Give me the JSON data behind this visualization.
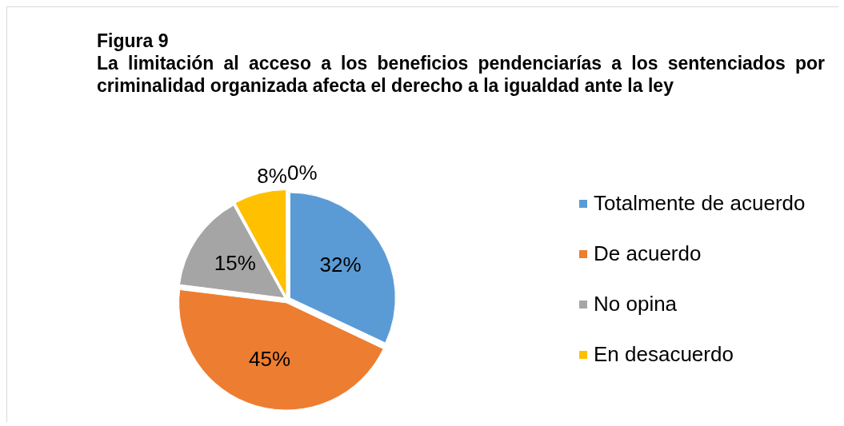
{
  "chart_data": {
    "type": "pie",
    "title": "Figura 9",
    "subtitle": "La limitación al acceso a los beneficios pendenciarías a los sentenciados por criminalidad organizada afecta el derecho a la igualdad ante la ley",
    "categories": [
      "Totalmente de acuerdo",
      "De acuerdo",
      "No opina",
      "En desacuerdo",
      null
    ],
    "values": [
      32,
      45,
      15,
      8,
      0
    ],
    "colors": [
      "#5b9bd5",
      "#ed7d31",
      "#a5a5a5",
      "#ffc000",
      "#4472c4"
    ],
    "value_labels": [
      "32%",
      "45%",
      "15%",
      "8%",
      "0%"
    ],
    "legend": "right"
  }
}
